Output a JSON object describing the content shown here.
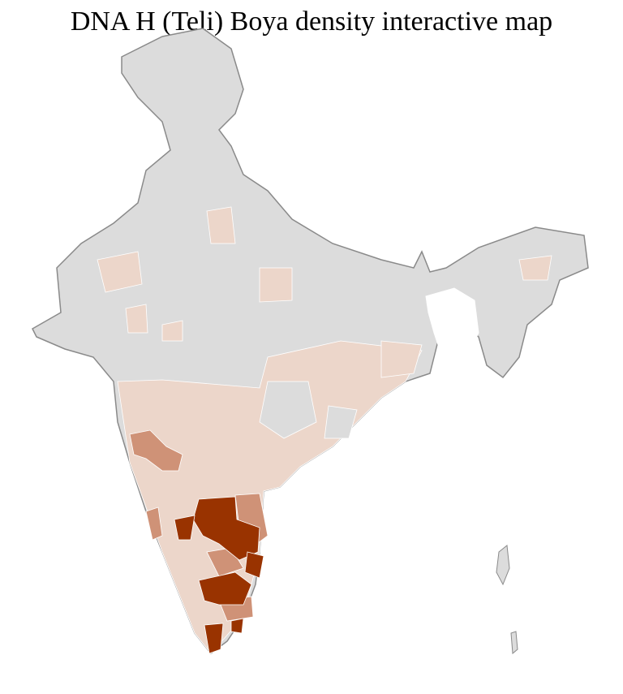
{
  "title": "DNA H (Teli) Boya density interactive map",
  "colors": {
    "no_data": "#dcdcdc",
    "low": "#ecd6ca",
    "medium": "#cf9277",
    "high": "#993300",
    "border": "#8a8a8a",
    "district_line": "#ffffff"
  }
}
